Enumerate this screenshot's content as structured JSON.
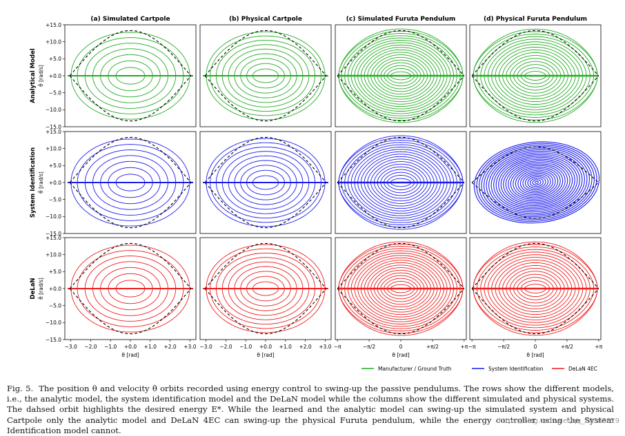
{
  "chart_data": {
    "type": "line",
    "description_free": true,
    "columns": [
      {
        "title": "(a) Simulated Cartpole",
        "system": "cartpole",
        "physical": false
      },
      {
        "title": "(b) Physical Cartpole",
        "system": "cartpole",
        "physical": true
      },
      {
        "title": "(c) Simulated Furuta Pendulum",
        "system": "furuta",
        "physical": false
      },
      {
        "title": "(d) Physical Furuta Pendulum",
        "system": "furuta",
        "physical": true
      }
    ],
    "rows": [
      {
        "model": "Analytical Model",
        "ylabel": "θ̇ [rad/s]",
        "color": "#22aa22",
        "legend": "Manufacturer / Ground Truth"
      },
      {
        "model": "System Identification",
        "ylabel": "θ̇ [rad/s]",
        "color": "#1a1aee",
        "legend": "System Identification"
      },
      {
        "model": "DeLaN",
        "ylabel": "θ̇ [rad/s]",
        "color": "#ee1a1a",
        "legend": "DeLaN 4EC"
      }
    ],
    "ylim": [
      -15,
      15
    ],
    "yticks": [
      "+15.0",
      "+10.0",
      "+5.0",
      "+0.0",
      "−5.0",
      "−10.0",
      "−15.0"
    ],
    "ytick_values": [
      15,
      10,
      5,
      0,
      -5,
      -10,
      -15
    ],
    "cartpole_xlim": [
      -3.3,
      3.3
    ],
    "cartpole_xticks": [
      "−3.0",
      "−2.0",
      "−1.0",
      "+0.0",
      "+1.0",
      "+2.0",
      "+3.0"
    ],
    "cartpole_xtick_values": [
      -3,
      -2,
      -1,
      0,
      1,
      2,
      3
    ],
    "furuta_xlim": [
      -3.25,
      3.25
    ],
    "furuta_xticks": [
      "−π",
      "−π/2",
      "0",
      "+π/2",
      "+π"
    ],
    "furuta_xtick_values": [
      -3.1416,
      -1.5708,
      0,
      1.5708,
      3.1416
    ],
    "xlabel": "θ [rad]",
    "desired_energy_peak": 13.3,
    "furuta_sysid_failed_peak": 10.5,
    "legend": [
      {
        "label": "Manufacturer / Ground Truth",
        "color": "#22aa22"
      },
      {
        "label": "System Identification",
        "color": "#1a1aee"
      },
      {
        "label": "DeLaN 4EC",
        "color": "#ee1a1a"
      }
    ]
  },
  "caption": {
    "label": "Fig. 5.",
    "text": "The position θ and velocity θ̇ orbits recorded using energy control to swing-up the passive pendulums. The rows show the different models, i.e., the analytic model, the system identification model and the DeLaN model while the columns show the different simulated and physical systems. The dahsed orbit highlights the desired energy E*. While the learned and the analytic model can swing-up the simulated system and physical Cartpole only the analytic model and DeLaN 4EC can swing-up the physical Furuta pendulum, while the energy controller using the System Identification model cannot."
  },
  "watermark": "https://blog.csdn.net/qq_28385879"
}
